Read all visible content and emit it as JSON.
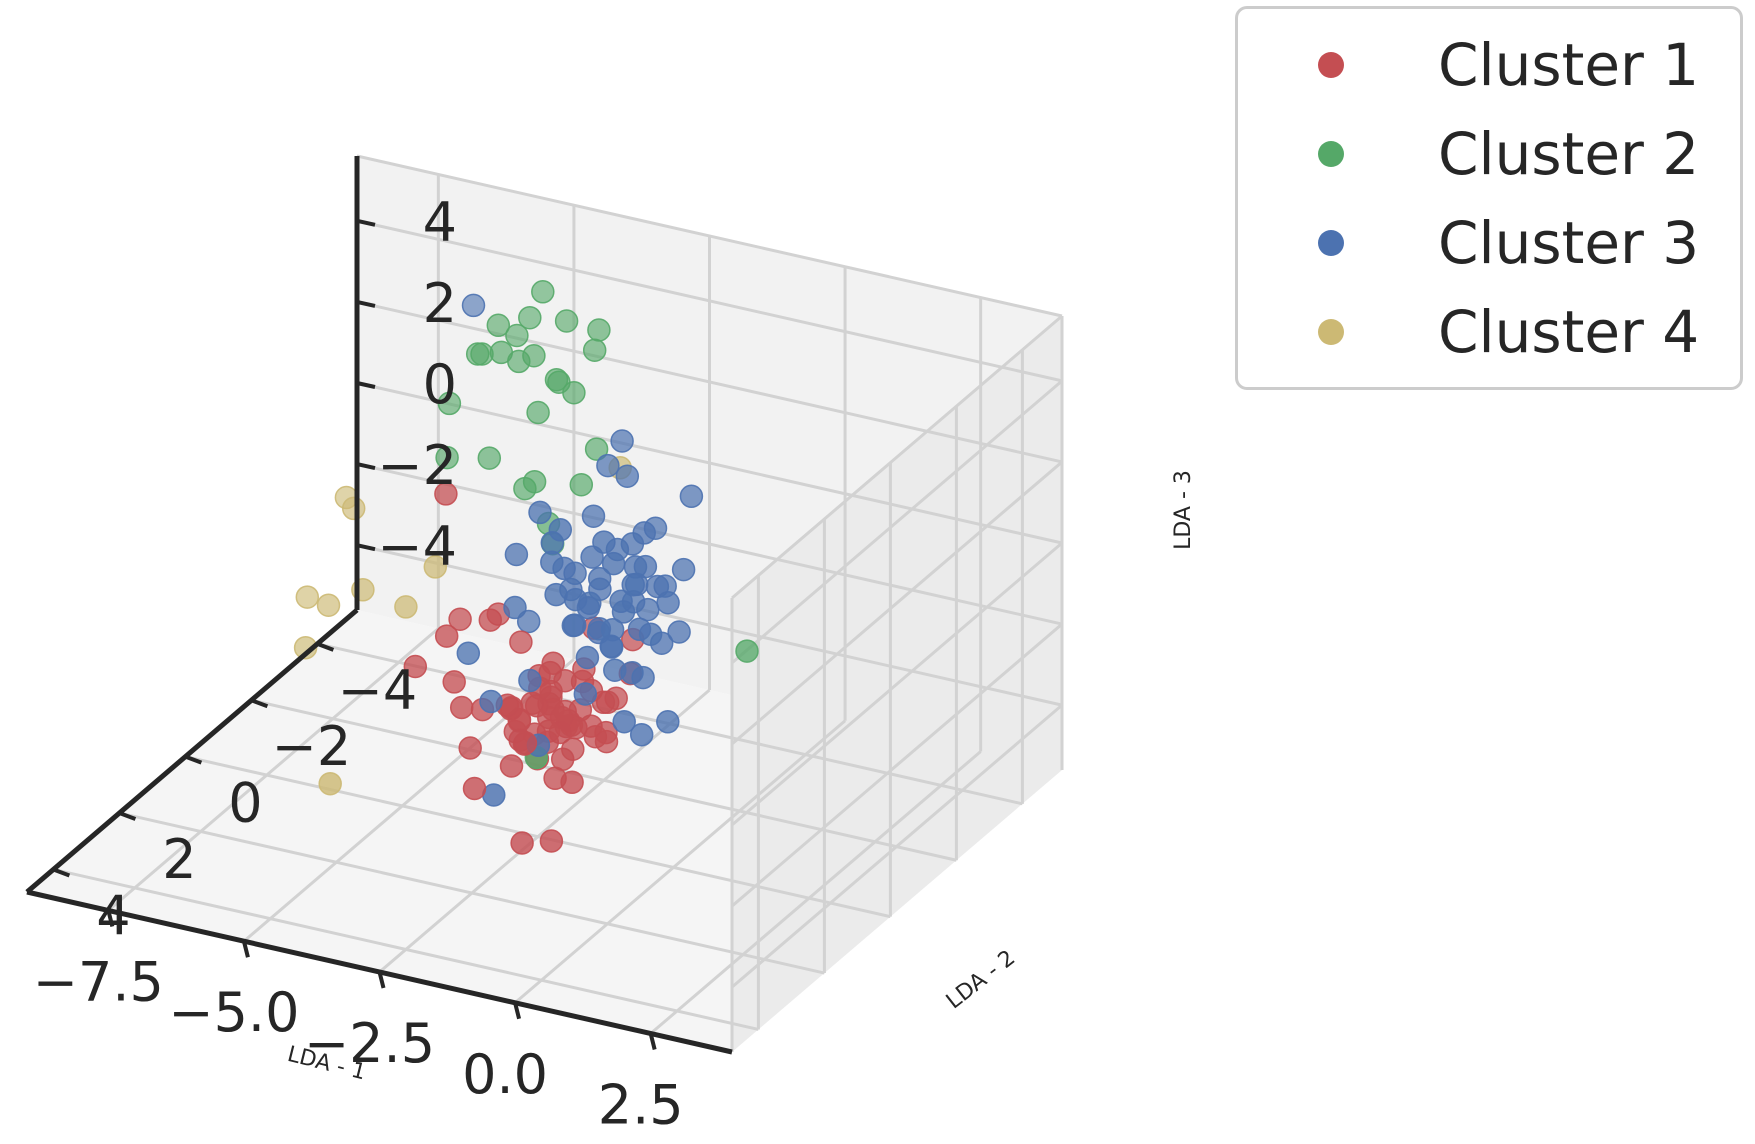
{
  "chart_data": {
    "type": "scatter",
    "projection": "3d",
    "title": "",
    "xlabel": "LDA - 1",
    "ylabel": "LDA - 2",
    "zlabel": "LDA - 3",
    "xticks": [
      "2.5",
      "0.0",
      "−2.5",
      "−5.0",
      "−7.5"
    ],
    "yticks": [
      "4",
      "2",
      "0",
      "−2",
      "−4"
    ],
    "zticks": [
      "−4",
      "−2",
      "0",
      "2",
      "4"
    ],
    "grid": true,
    "legend_position": "top-right, outside",
    "series": [
      {
        "name": "Cluster 1",
        "color": "#c44e52",
        "points": [
          [
            -1.9,
            -0.3,
            -2.5
          ],
          [
            -2.1,
            0.2,
            -2.2
          ],
          [
            -2.3,
            -0.5,
            -2.8
          ],
          [
            -1.7,
            0.6,
            -2.0
          ],
          [
            -2.5,
            0.1,
            -3.0
          ],
          [
            -2.0,
            -0.8,
            -2.4
          ],
          [
            -1.8,
            0.4,
            -3.2
          ],
          [
            -2.6,
            -0.2,
            -1.8
          ],
          [
            -2.2,
            0.9,
            -2.6
          ],
          [
            -1.5,
            -0.1,
            -2.9
          ],
          [
            -2.8,
            0.3,
            -2.3
          ],
          [
            -2.0,
            0.0,
            -1.6
          ],
          [
            -1.6,
            -0.6,
            -3.4
          ],
          [
            -2.4,
            0.7,
            -2.7
          ],
          [
            -2.1,
            -0.4,
            -3.6
          ],
          [
            -2.7,
            -0.7,
            -2.1
          ],
          [
            -1.9,
            1.0,
            -2.8
          ],
          [
            -2.3,
            0.5,
            -1.9
          ],
          [
            -1.4,
            0.2,
            -2.4
          ],
          [
            -2.9,
            -0.1,
            -2.9
          ],
          [
            -2.2,
            -0.9,
            -2.0
          ],
          [
            -1.8,
            -0.2,
            -1.7
          ],
          [
            -2.5,
            0.8,
            -3.3
          ],
          [
            -2.0,
            0.3,
            -3.8
          ],
          [
            -1.6,
            0.8,
            -2.2
          ],
          [
            -2.4,
            -0.3,
            -1.5
          ],
          [
            -2.6,
            0.4,
            -2.5
          ],
          [
            -1.7,
            -0.8,
            -2.6
          ],
          [
            -2.1,
            0.6,
            -1.4
          ],
          [
            -3.0,
            0.0,
            -2.6
          ],
          [
            -1.3,
            -0.4,
            -2.1
          ],
          [
            -2.3,
            -0.6,
            -3.1
          ],
          [
            -2.0,
            1.2,
            -2.3
          ],
          [
            -1.9,
            -1.0,
            -2.8
          ],
          [
            -2.7,
            0.6,
            -2.0
          ],
          [
            -2.2,
            0.1,
            -2.0
          ],
          [
            -1.8,
            0.0,
            -2.7
          ],
          [
            -2.4,
            0.2,
            -2.2
          ],
          [
            -2.1,
            -0.2,
            -2.9
          ],
          [
            -2.0,
            0.5,
            -2.5
          ],
          [
            -2.6,
            -0.5,
            -2.7
          ],
          [
            -1.7,
            0.3,
            -2.4
          ],
          [
            -2.3,
            0.0,
            -2.6
          ],
          [
            -1.9,
            0.7,
            -2.6
          ],
          [
            -2.5,
            -0.4,
            -2.3
          ],
          [
            -3.2,
            0.9,
            -3.0
          ],
          [
            -3.4,
            0.2,
            -2.6
          ],
          [
            -3.1,
            -0.3,
            -3.4
          ],
          [
            -3.6,
            0.5,
            -2.4
          ],
          [
            -1.2,
            1.1,
            -3.1
          ],
          [
            -1.0,
            0.4,
            -2.3
          ],
          [
            -3.3,
            -0.8,
            -1.6
          ],
          [
            -3.5,
            -0.2,
            -0.7
          ],
          [
            -3.8,
            0.4,
            -1.9
          ],
          [
            -1.3,
            -0.9,
            -1.0
          ],
          [
            -4.0,
            0.3,
            -0.9
          ],
          [
            -4.3,
            -0.6,
            -1.2
          ],
          [
            -4.7,
            0.1,
            -2.0
          ],
          [
            -1.4,
            1.4,
            -4.4
          ],
          [
            -2.0,
            1.3,
            -4.7
          ],
          [
            -3.9,
            -1.1,
            -1.3
          ],
          [
            -1.1,
            -0.5,
            -1.5
          ],
          [
            -2.2,
            -1.2,
            -1.2
          ],
          [
            -3.0,
            1.1,
            -3.8
          ],
          [
            -4.5,
            -0.5,
            1.9
          ]
        ]
      },
      {
        "name": "Cluster 2",
        "color": "#55a868",
        "points": [
          [
            -3.2,
            -3.0,
            4.6
          ],
          [
            -4.1,
            -3.5,
            4.2
          ],
          [
            -4.6,
            -3.6,
            4.7
          ],
          [
            -5.3,
            -3.4,
            3.8
          ],
          [
            -4.8,
            -3.2,
            3.2
          ],
          [
            -5.6,
            -3.4,
            3.0
          ],
          [
            -3.0,
            -2.6,
            2.0
          ],
          [
            -3.8,
            -2.7,
            3.4
          ],
          [
            -4.4,
            -3.0,
            3.6
          ],
          [
            -5.0,
            -3.0,
            3.5
          ],
          [
            -5.8,
            -3.6,
            2.8
          ],
          [
            -4.2,
            -2.8,
            2.4
          ],
          [
            -3.6,
            -2.9,
            3.0
          ],
          [
            -4.9,
            -3.7,
            3.9
          ],
          [
            -3.4,
            -3.2,
            3.9
          ],
          [
            -5.2,
            -3.8,
            3.3
          ],
          [
            -4.0,
            -3.1,
            3.0
          ],
          [
            -6.2,
            -3.4,
            1.6
          ],
          [
            -6.0,
            -3.0,
            0.6
          ],
          [
            -5.1,
            -2.8,
            1.0
          ],
          [
            -4.2,
            -2.4,
            0.8
          ],
          [
            -3.4,
            -1.8,
            0.6
          ],
          [
            -3.2,
            -1.6,
            0.3
          ],
          [
            -3.9,
            -2.2,
            1.2
          ],
          [
            1.6,
            0.4,
            0.5
          ],
          [
            -1.8,
            1.2,
            -2.6
          ],
          [
            -3.1,
            -2.3,
            1.3
          ]
        ]
      },
      {
        "name": "Cluster 3",
        "color": "#4c72b0",
        "points": [
          [
            -0.5,
            0.4,
            1.5
          ],
          [
            -0.8,
            -0.2,
            1.0
          ],
          [
            -1.0,
            0.6,
            0.4
          ],
          [
            -0.6,
            -0.5,
            0.8
          ],
          [
            -1.3,
            0.1,
            1.2
          ],
          [
            -0.3,
            0.2,
            0.2
          ],
          [
            -0.9,
            -0.7,
            0.0
          ],
          [
            -1.5,
            0.5,
            0.9
          ],
          [
            -0.4,
            -0.3,
            -0.4
          ],
          [
            -1.1,
            0.8,
            -0.2
          ],
          [
            -0.7,
            0.0,
            1.6
          ],
          [
            -1.6,
            -0.4,
            0.5
          ],
          [
            -0.2,
            0.7,
            0.7
          ],
          [
            -1.2,
            -0.1,
            -0.6
          ],
          [
            -0.6,
            0.9,
            0.3
          ],
          [
            -1.4,
            -0.6,
            1.4
          ],
          [
            -0.9,
            0.3,
            -0.8
          ],
          [
            -0.3,
            -0.8,
            1.1
          ],
          [
            -1.7,
            0.2,
            0.0
          ],
          [
            -0.8,
            0.5,
            2.0
          ],
          [
            -1.0,
            -0.4,
            1.8
          ],
          [
            -0.5,
            0.1,
            -1.0
          ],
          [
            -1.3,
            0.9,
            0.6
          ],
          [
            -0.1,
            0.0,
            0.9
          ],
          [
            -1.8,
            0.6,
            1.0
          ],
          [
            -0.7,
            -0.9,
            0.5
          ],
          [
            -1.1,
            0.3,
            2.3
          ],
          [
            -0.4,
            0.6,
            -0.5
          ],
          [
            -1.5,
            -0.2,
            -0.4
          ],
          [
            -0.6,
            -0.1,
            2.4
          ],
          [
            -2.0,
            0.4,
            1.6
          ],
          [
            -0.2,
            -0.5,
            -0.2
          ],
          [
            -1.2,
            0.7,
            -1.2
          ],
          [
            -2.2,
            -0.3,
            0.9
          ],
          [
            -0.9,
            1.1,
            1.3
          ],
          [
            -1.9,
            -0.7,
            2.0
          ],
          [
            -1.6,
            0.8,
            2.8
          ],
          [
            -2.4,
            0.1,
            2.5
          ],
          [
            -1.0,
            -1.1,
            1.7
          ],
          [
            -0.3,
            1.0,
            -1.4
          ],
          [
            -2.6,
            -0.6,
            1.2
          ],
          [
            -2.1,
            0.9,
            -1.0
          ],
          [
            -1.4,
            -0.9,
            3.0
          ],
          [
            -2.8,
            0.2,
            0.1
          ],
          [
            -0.1,
            0.8,
            -1.8
          ],
          [
            -3.2,
            -0.5,
            0.8
          ],
          [
            -2.5,
            -1.0,
            -0.2
          ],
          [
            -3.6,
            0.3,
            -1.2
          ],
          [
            -2.0,
            -1.3,
            2.8
          ],
          [
            -1.7,
            1.3,
            -2.2
          ],
          [
            -0.4,
            -1.2,
            2.6
          ],
          [
            -3.0,
            0.6,
            -2.0
          ],
          [
            -2.3,
            -0.8,
            0.4
          ],
          [
            -1.1,
            -0.6,
            0.2
          ],
          [
            -0.8,
            0.2,
            0.6
          ],
          [
            -1.3,
            0.4,
            0.8
          ],
          [
            -0.6,
            0.6,
            1.2
          ],
          [
            -1.5,
            0.0,
            1.6
          ],
          [
            -1.0,
            0.2,
            0.1
          ],
          [
            -0.7,
            -0.3,
            1.4
          ],
          [
            -6.0,
            -3.8,
            3.8
          ],
          [
            -2.4,
            1.5,
            -3.5
          ],
          [
            -3.4,
            -1.2,
            -1.4
          ],
          [
            0.2,
            0.5,
            -1.6
          ],
          [
            -1.8,
            -1.4,
            3.4
          ]
        ]
      },
      {
        "name": "Cluster 4",
        "color": "#ccb974",
        "points": [
          [
            -2.2,
            -2.0,
            2.2
          ],
          [
            -5.0,
            -1.0,
            -0.4
          ],
          [
            -5.3,
            -0.6,
            -1.2
          ],
          [
            -5.6,
            1.2,
            -4.4
          ],
          [
            -6.7,
            -1.6,
            -1.9
          ],
          [
            -7.6,
            -2.8,
            -1.0
          ],
          [
            -8.1,
            -3.4,
            -1.3
          ],
          [
            -7.7,
            -2.2,
            -3.0
          ],
          [
            -8.0,
            -2.0,
            -4.0
          ],
          [
            -8.7,
            -3.2,
            -3.8
          ]
        ]
      }
    ]
  }
}
